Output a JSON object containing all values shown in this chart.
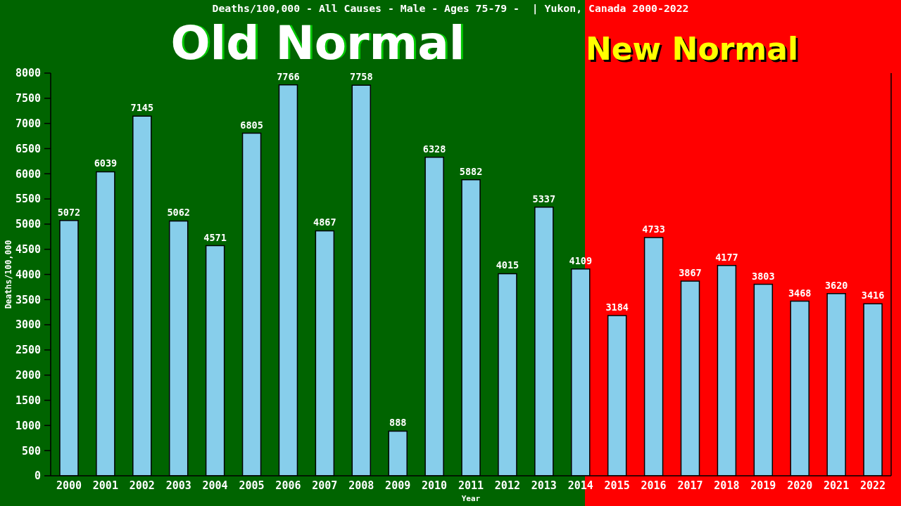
{
  "chart_data": {
    "type": "bar",
    "title": "Deaths/100,000 - All Causes - Male - Ages 75-79 -  | Yukon, Canada 2000-2022",
    "xlabel": "Year",
    "ylabel": "Deaths/100,000",
    "x": [
      2000,
      2001,
      2002,
      2003,
      2004,
      2005,
      2006,
      2007,
      2008,
      2009,
      2010,
      2011,
      2012,
      2013,
      2014,
      2015,
      2016,
      2017,
      2018,
      2019,
      2020,
      2021,
      2022
    ],
    "values": [
      5072,
      6039,
      7145,
      5062,
      4571,
      6805,
      7766,
      4867,
      7758,
      888,
      6328,
      5882,
      4015,
      5337,
      4109,
      3184,
      4733,
      3867,
      4177,
      3803,
      3468,
      3620,
      3416
    ],
    "data_labels": true,
    "color": "#87ceeb",
    "xlim": [
      1999.5,
      2022.5
    ],
    "xticks": [
      2000,
      2001,
      2002,
      2003,
      2004,
      2005,
      2006,
      2007,
      2008,
      2009,
      2010,
      2011,
      2012,
      2013,
      2014,
      2015,
      2016,
      2017,
      2018,
      2019,
      2020,
      2021,
      2022
    ],
    "ylim": [
      0,
      8000
    ],
    "yticks": [
      0,
      500,
      1000,
      1500,
      2000,
      2500,
      3000,
      3500,
      4000,
      4500,
      5000,
      5500,
      6000,
      6500,
      7000,
      7500,
      8000
    ],
    "bands": [
      {
        "axis": "x",
        "from": 1999.5,
        "to": 2014.12,
        "label": "Old Normal",
        "color": "#006400"
      },
      {
        "axis": "x",
        "from": 2014.12,
        "to": 2022.5,
        "label": "New Normal",
        "color": "#ff0000"
      }
    ]
  }
}
